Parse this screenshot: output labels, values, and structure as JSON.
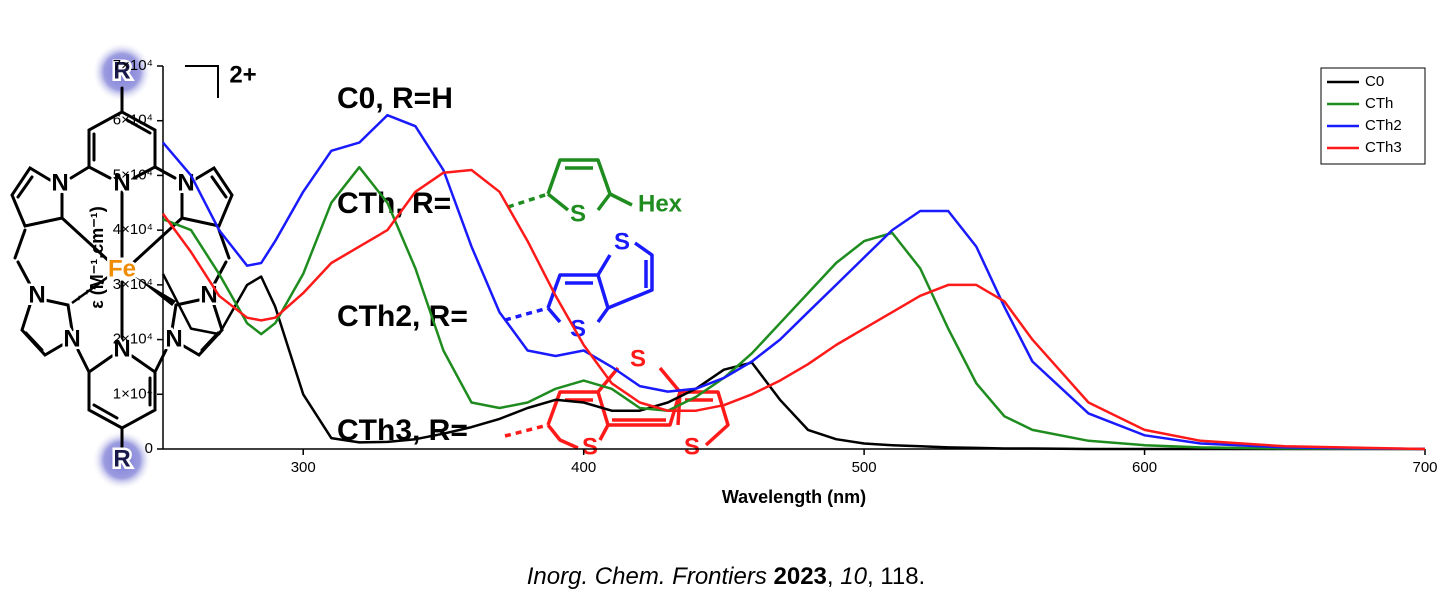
{
  "complex": {
    "charge": "2+",
    "atoms": [
      "R",
      "N",
      "N",
      "N",
      "Fe",
      "N",
      "N",
      "N",
      "N",
      "N",
      "R"
    ]
  },
  "substituents": [
    {
      "label": "C0, R=H",
      "color": "#000000",
      "atoms": []
    },
    {
      "label": "CTh, R=",
      "color": "#1e8c1e",
      "atoms": [
        "S",
        "Hex"
      ]
    },
    {
      "label": "CTh2, R=",
      "color": "#1a1aff",
      "atoms": [
        "S",
        "S"
      ]
    },
    {
      "label": "CTh3, R=",
      "color": "#ff1a1a",
      "atoms": [
        "S",
        "S",
        "S"
      ]
    }
  ],
  "chart_data": {
    "type": "line",
    "xlabel": "Wavelength (nm)",
    "ylabel": "ε (M⁻¹.cm⁻¹)",
    "xlim": [
      250,
      700
    ],
    "ylim": [
      0,
      70000
    ],
    "xticks": [
      300,
      400,
      500,
      600,
      700
    ],
    "yticks": [
      0,
      {
        "value": 10000,
        "label": "1×10⁴"
      },
      {
        "value": 20000,
        "label": "2×10⁴"
      },
      {
        "value": 30000,
        "label": "3×10⁴"
      },
      {
        "value": 40000,
        "label": "4×10⁴"
      },
      {
        "value": 50000,
        "label": "5×10⁴"
      },
      {
        "value": 60000,
        "label": "6×10⁴"
      },
      {
        "value": 70000,
        "label": "7×10⁴"
      }
    ],
    "legend": "top-right",
    "x": [
      250,
      260,
      270,
      280,
      285,
      290,
      300,
      310,
      320,
      330,
      340,
      350,
      360,
      370,
      380,
      390,
      400,
      410,
      420,
      430,
      440,
      450,
      460,
      470,
      480,
      490,
      500,
      510,
      520,
      530,
      540,
      550,
      560,
      580,
      600,
      620,
      650,
      700
    ],
    "series": [
      {
        "name": "C0",
        "color": "#000000",
        "values": [
          32000,
          22000,
          21000,
          30000,
          31500,
          26000,
          10000,
          2000,
          1200,
          1300,
          1800,
          2800,
          4000,
          5500,
          7500,
          9000,
          8500,
          7000,
          7000,
          8500,
          11000,
          14500,
          15800,
          9000,
          3500,
          1800,
          1000,
          700,
          500,
          300,
          200,
          100,
          100,
          0,
          0,
          0,
          0,
          0
        ]
      },
      {
        "name": "CTh",
        "color": "#1e8c1e",
        "values": [
          42000,
          40000,
          32000,
          23000,
          21000,
          23000,
          32000,
          45000,
          51500,
          45000,
          33000,
          18000,
          8500,
          7500,
          8500,
          11000,
          12500,
          11000,
          7500,
          7000,
          9500,
          13000,
          17500,
          23000,
          28500,
          34000,
          38000,
          39500,
          33000,
          22000,
          12000,
          6000,
          3500,
          1500,
          700,
          300,
          100,
          0
        ]
      },
      {
        "name": "CTh2",
        "color": "#1a1aff",
        "values": [
          56000,
          50000,
          40000,
          33500,
          34000,
          38000,
          47000,
          54500,
          56000,
          61000,
          59000,
          51000,
          37000,
          25000,
          18000,
          17000,
          18000,
          15000,
          11500,
          10500,
          11000,
          13000,
          16000,
          20000,
          25000,
          30000,
          35000,
          40000,
          43500,
          43500,
          37000,
          26000,
          16000,
          6500,
          2500,
          1000,
          300,
          0
        ]
      },
      {
        "name": "CTh3",
        "color": "#ff1a1a",
        "values": [
          43000,
          36000,
          28000,
          24000,
          23500,
          24000,
          28500,
          34000,
          37000,
          40000,
          47000,
          50500,
          51000,
          47000,
          38000,
          28000,
          19000,
          12000,
          8500,
          7000,
          7000,
          8000,
          10000,
          12500,
          15500,
          19000,
          22000,
          25000,
          28000,
          30000,
          30000,
          27000,
          20000,
          8500,
          3500,
          1500,
          500,
          0
        ]
      }
    ]
  },
  "citation": [
    {
      "text": "Inorg. Chem. Frontiers ",
      "style": "italic"
    },
    {
      "text": "2023",
      "style": "bold"
    },
    {
      "text": ", ",
      "style": "normal"
    },
    {
      "text": "10",
      "style": "italic"
    },
    {
      "text": ", 118.",
      "style": "normal"
    }
  ]
}
